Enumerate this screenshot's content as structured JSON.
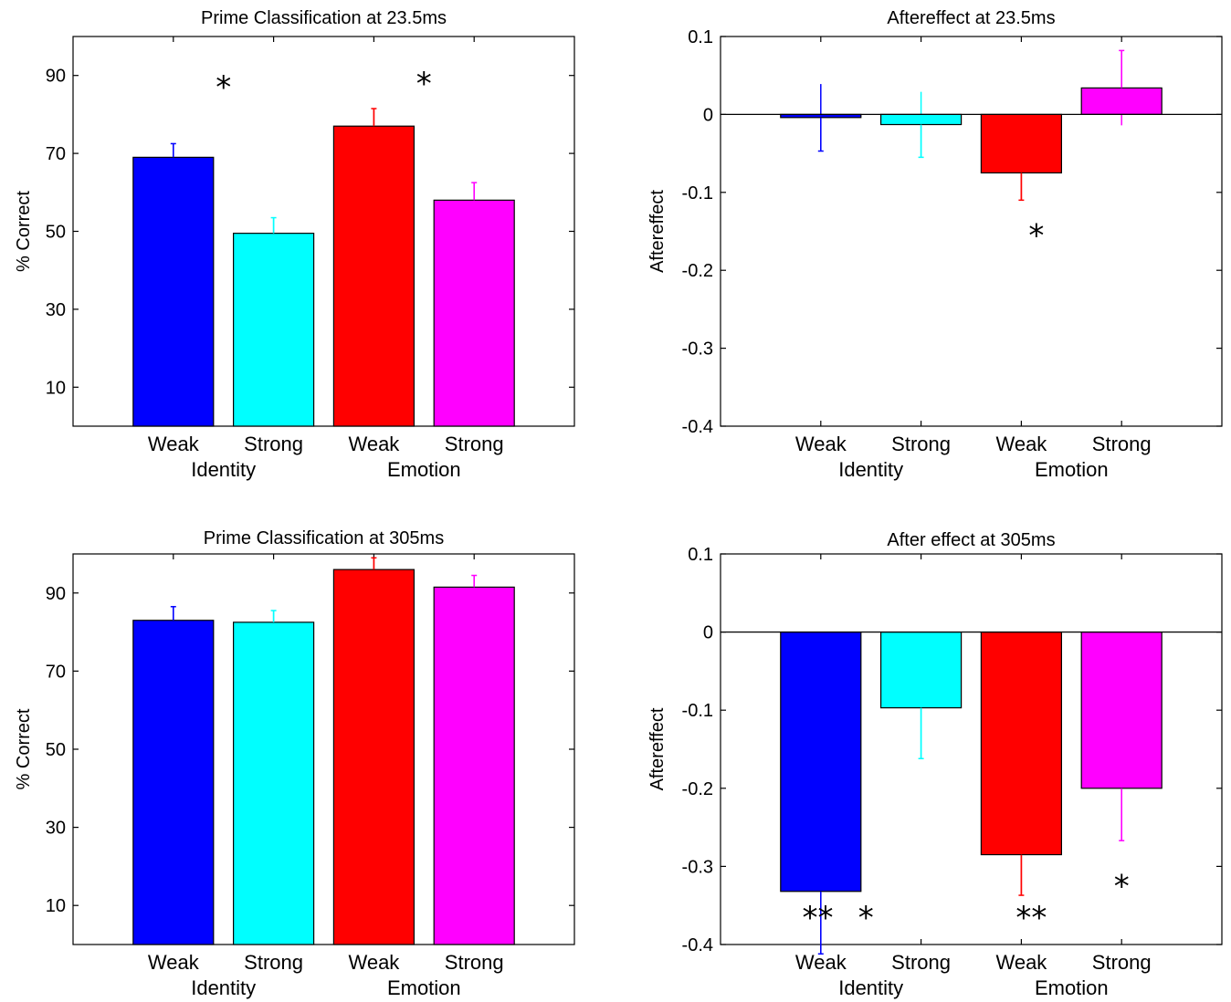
{
  "chart_data": [
    {
      "type": "bar",
      "title": "Prime Classification at 23.5ms",
      "xlabel": "",
      "ylabel": "% Correct",
      "ylim": [
        0,
        100
      ],
      "yticks": [
        10,
        30,
        50,
        70,
        90
      ],
      "categories": [
        "Weak",
        "Strong",
        "Weak",
        "Strong"
      ],
      "groups": [
        "Identity",
        "Emotion"
      ],
      "values": [
        69,
        49.5,
        77,
        58
      ],
      "errors": [
        3.5,
        4,
        4.5,
        4.5
      ],
      "colors": [
        "#0000ff",
        "#00ffff",
        "#ff0000",
        "#ff00ff"
      ],
      "annotations": [
        {
          "text": "*",
          "x": 1.5,
          "y": 88
        },
        {
          "text": "*",
          "x": 3.5,
          "y": 89
        }
      ],
      "grid": false
    },
    {
      "type": "bar",
      "title": "Aftereffect at 23.5ms",
      "xlabel": "",
      "ylabel": "Aftereffect",
      "ylim": [
        -0.4,
        0.1
      ],
      "yticks": [
        -0.4,
        -0.3,
        -0.2,
        -0.1,
        0,
        0.1
      ],
      "categories": [
        "Weak",
        "Strong",
        "Weak",
        "Strong"
      ],
      "groups": [
        "Identity",
        "Emotion"
      ],
      "values": [
        -0.004,
        -0.013,
        -0.075,
        0.034
      ],
      "errors": [
        0.043,
        0.042,
        0.035,
        0.048
      ],
      "colors": [
        "#0000ff",
        "#00ffff",
        "#ff0000",
        "#ff00ff"
      ],
      "annotations": [
        {
          "text": "*",
          "x": 3.15,
          "y": -0.15
        }
      ],
      "grid": false
    },
    {
      "type": "bar",
      "title": "Prime Classification at 305ms",
      "xlabel": "",
      "ylabel": "% Correct",
      "ylim": [
        0,
        100
      ],
      "yticks": [
        10,
        30,
        50,
        70,
        90
      ],
      "categories": [
        "Weak",
        "Strong",
        "Weak",
        "Strong"
      ],
      "groups": [
        "Identity",
        "Emotion"
      ],
      "values": [
        83,
        82.5,
        96,
        91.5
      ],
      "errors": [
        3.5,
        3,
        3,
        3
      ],
      "colors": [
        "#0000ff",
        "#00ffff",
        "#ff0000",
        "#ff00ff"
      ],
      "annotations": [],
      "grid": false
    },
    {
      "type": "bar",
      "title": "After effect at 305ms",
      "xlabel": "",
      "ylabel": "Aftereffect",
      "ylim": [
        -0.4,
        0.1
      ],
      "yticks": [
        -0.4,
        -0.3,
        -0.2,
        -0.1,
        0,
        0.1
      ],
      "categories": [
        "Weak",
        "Strong",
        "Weak",
        "Strong"
      ],
      "groups": [
        "Identity",
        "Emotion"
      ],
      "values": [
        -0.332,
        -0.097,
        -0.285,
        -0.2
      ],
      "errors": [
        0.08,
        0.065,
        0.052,
        0.067
      ],
      "colors": [
        "#0000ff",
        "#00ffff",
        "#ff0000",
        "#ff00ff"
      ],
      "annotations": [
        {
          "text": "**",
          "x": 0.97,
          "y": -0.36
        },
        {
          "text": "*",
          "x": 1.45,
          "y": -0.36
        },
        {
          "text": "**",
          "x": 3.1,
          "y": -0.36
        },
        {
          "text": "*",
          "x": 4.0,
          "y": -0.32
        }
      ],
      "grid": false
    }
  ]
}
